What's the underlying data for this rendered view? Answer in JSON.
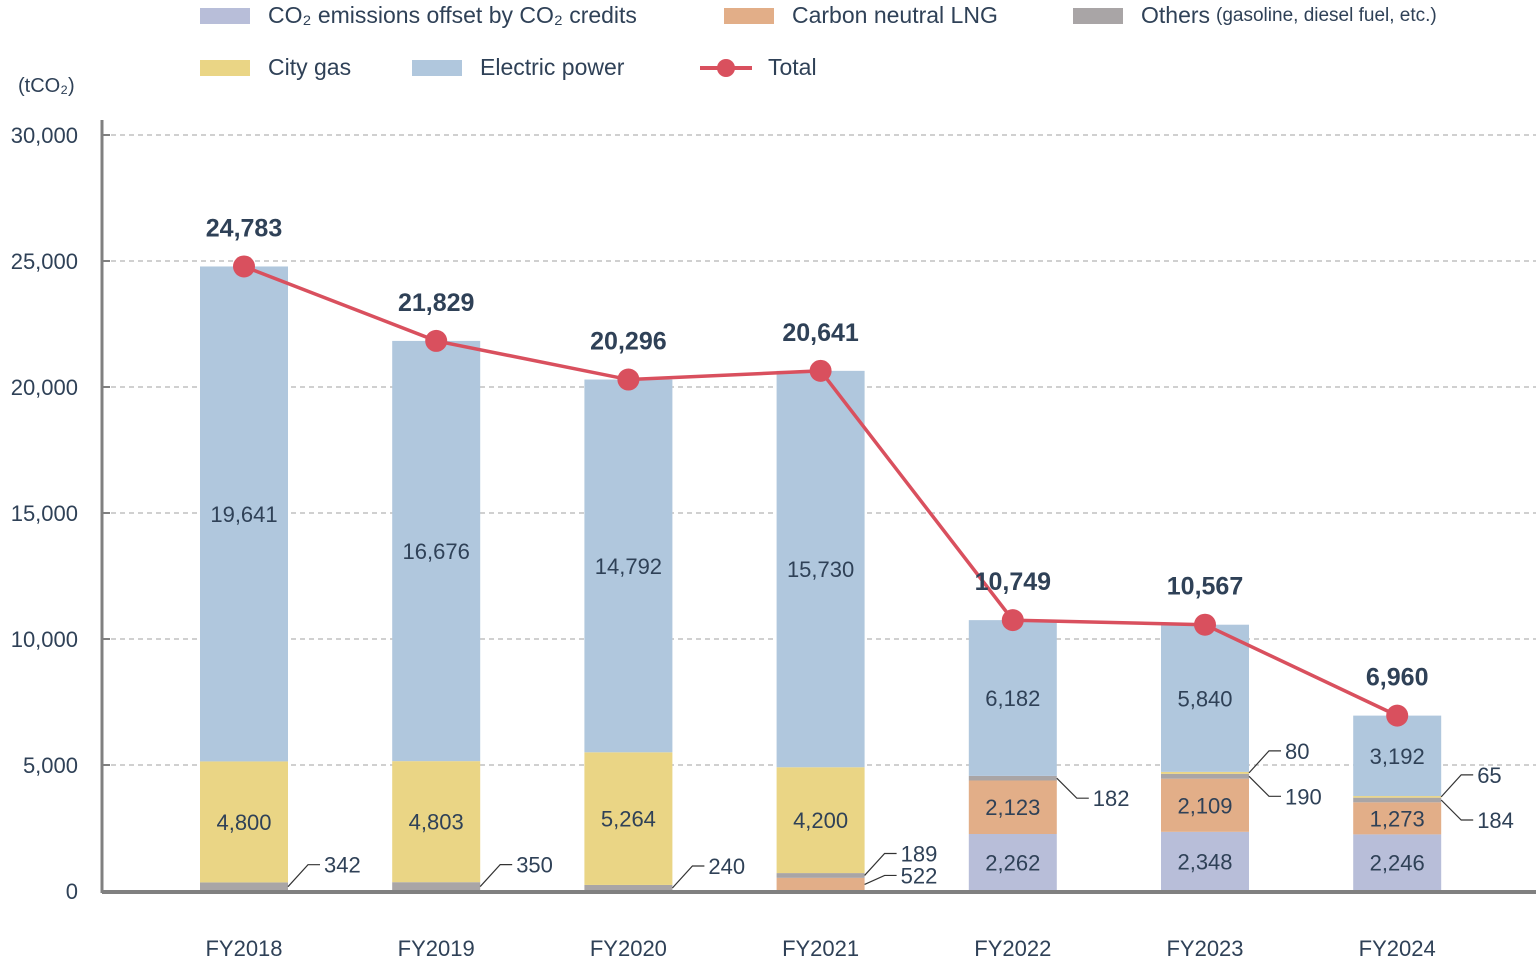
{
  "chart_data": {
    "type": "bar",
    "stacked": true,
    "title": "",
    "unit_label": "(tCO₂)",
    "xlabel": "",
    "ylabel": "tCO₂",
    "ylim": [
      0,
      30000
    ],
    "yticks": [
      0,
      5000,
      10000,
      15000,
      20000,
      25000,
      30000
    ],
    "ytick_labels": [
      "0",
      "5,000",
      "10,000",
      "15,000",
      "20,000",
      "25,000",
      "30,000"
    ],
    "grid": true,
    "legend_position": "top",
    "categories": [
      "FY2018",
      "FY2019",
      "FY2020",
      "FY2021",
      "FY2022",
      "FY2023",
      "FY2024"
    ],
    "series": [
      {
        "key": "offset",
        "name": "CO₂ emissions offset by CO₂ credits",
        "color": "#b8bed9",
        "values": [
          0,
          0,
          0,
          0,
          2262,
          2348,
          2246
        ]
      },
      {
        "key": "lng",
        "name": "Carbon neutral LNG",
        "color": "#e2ae88",
        "values": [
          0,
          0,
          0,
          522,
          2123,
          2109,
          1273
        ]
      },
      {
        "key": "others",
        "name": "Others",
        "name_note": "(gasoline, diesel fuel, etc.)",
        "color": "#a9a5a6",
        "values": [
          342,
          350,
          240,
          189,
          182,
          190,
          184
        ]
      },
      {
        "key": "citygas",
        "name": "City gas",
        "color": "#ead585",
        "values": [
          4800,
          4803,
          5264,
          4200,
          0,
          80,
          65
        ]
      },
      {
        "key": "electric",
        "name": "Electric power",
        "color": "#b0c7dd",
        "values": [
          19641,
          16676,
          14792,
          15730,
          6182,
          5840,
          3192
        ]
      }
    ],
    "total": {
      "name": "Total",
      "color": "#d9505e",
      "values": [
        24783,
        21829,
        20296,
        20641,
        10749,
        10567,
        6960
      ],
      "labels": [
        "24,783",
        "21,829",
        "20,296",
        "20,641",
        "10,749",
        "10,567",
        "6,960"
      ]
    },
    "inside_labels": [
      {
        "cat": 0,
        "series": "citygas",
        "text": "4,800"
      },
      {
        "cat": 0,
        "series": "electric",
        "text": "19,641"
      },
      {
        "cat": 1,
        "series": "citygas",
        "text": "4,803"
      },
      {
        "cat": 1,
        "series": "electric",
        "text": "16,676"
      },
      {
        "cat": 2,
        "series": "citygas",
        "text": "5,264"
      },
      {
        "cat": 2,
        "series": "electric",
        "text": "14,792"
      },
      {
        "cat": 3,
        "series": "citygas",
        "text": "4,200"
      },
      {
        "cat": 3,
        "series": "electric",
        "text": "15,730"
      },
      {
        "cat": 4,
        "series": "offset",
        "text": "2,262"
      },
      {
        "cat": 4,
        "series": "lng",
        "text": "2,123"
      },
      {
        "cat": 4,
        "series": "electric",
        "text": "6,182"
      },
      {
        "cat": 5,
        "series": "offset",
        "text": "2,348"
      },
      {
        "cat": 5,
        "series": "lng",
        "text": "2,109"
      },
      {
        "cat": 5,
        "series": "electric",
        "text": "5,840"
      },
      {
        "cat": 6,
        "series": "offset",
        "text": "2,246"
      },
      {
        "cat": 6,
        "series": "lng",
        "text": "1,273"
      },
      {
        "cat": 6,
        "series": "electric",
        "text": "3,192"
      }
    ],
    "callout_labels": [
      {
        "cat": 0,
        "series": "others",
        "text": "342",
        "dir": "up"
      },
      {
        "cat": 1,
        "series": "others",
        "text": "350",
        "dir": "up"
      },
      {
        "cat": 2,
        "series": "others",
        "text": "240",
        "dir": "up"
      },
      {
        "cat": 3,
        "series": "others",
        "text": "189",
        "dir": "up"
      },
      {
        "cat": 3,
        "series": "lng",
        "text": "522",
        "dir": "low"
      },
      {
        "cat": 4,
        "series": "others",
        "text": "182",
        "dir": "down"
      },
      {
        "cat": 5,
        "series": "citygas",
        "text": "80",
        "dir": "up"
      },
      {
        "cat": 5,
        "series": "others",
        "text": "190",
        "dir": "down"
      },
      {
        "cat": 6,
        "series": "citygas",
        "text": "65",
        "dir": "up"
      },
      {
        "cat": 6,
        "series": "others",
        "text": "184",
        "dir": "down"
      }
    ]
  },
  "legend": {
    "offset": "CO₂ emissions offset by CO₂ credits",
    "lng": "Carbon neutral LNG",
    "others": "Others",
    "others_note": "(gasoline, diesel fuel, etc.)",
    "citygas": "City gas",
    "electric": "Electric power",
    "total": "Total"
  }
}
